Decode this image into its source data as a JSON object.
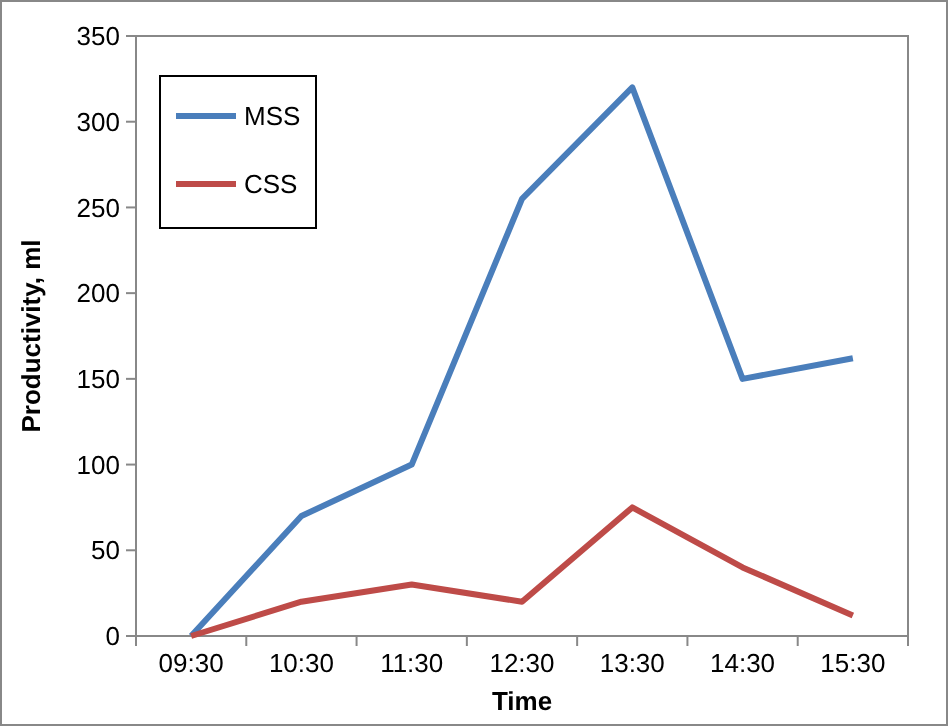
{
  "chart_data": {
    "type": "line",
    "xlabel": "Time",
    "ylabel": "Productivity, ml",
    "categories": [
      "09:30",
      "10:30",
      "11:30",
      "12:30",
      "13:30",
      "14:30",
      "15:30"
    ],
    "series": [
      {
        "name": "MSS",
        "color": "#4a7ebb",
        "values": [
          0,
          70,
          100,
          255,
          320,
          150,
          162
        ]
      },
      {
        "name": "CSS",
        "color": "#be4b48",
        "values": [
          0,
          20,
          30,
          20,
          75,
          40,
          12
        ]
      }
    ],
    "ylim": [
      0,
      350
    ],
    "yticks": [
      0,
      50,
      100,
      150,
      200,
      250,
      300,
      350
    ],
    "grid": false,
    "legend": "top left",
    "marker": "none",
    "line_style": "solid"
  }
}
